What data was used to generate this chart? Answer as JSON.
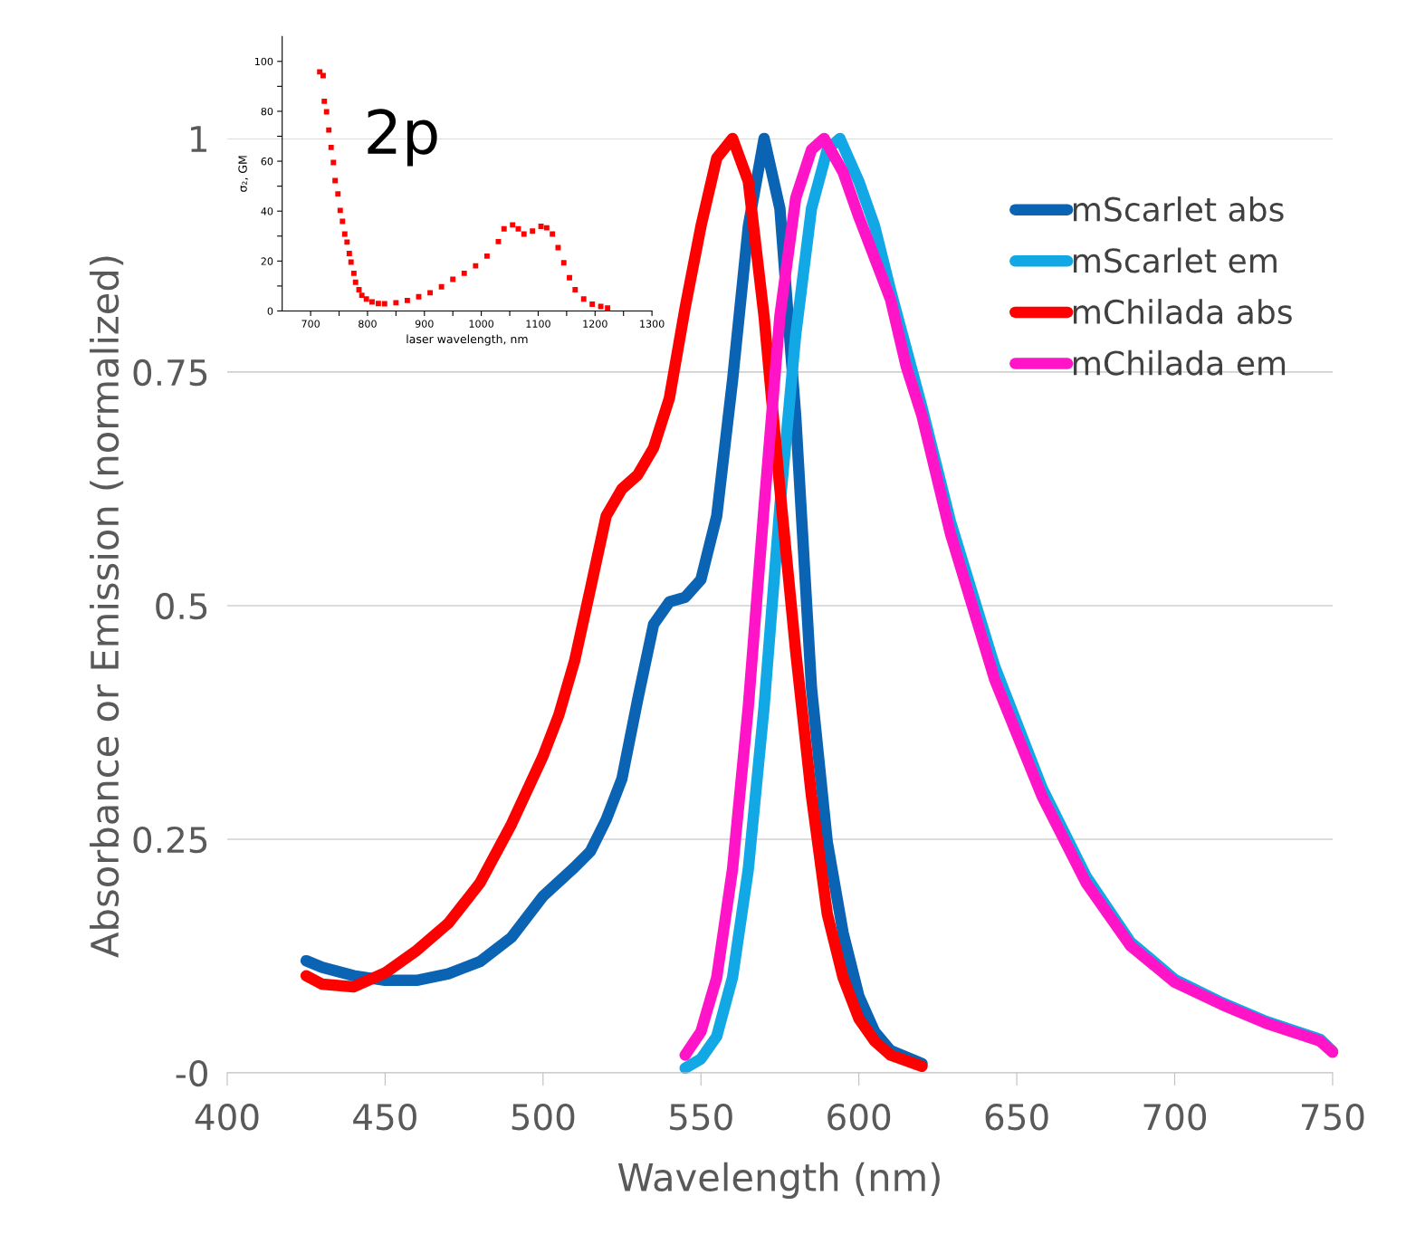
{
  "chart_data": [
    {
      "type": "line",
      "xlabel": "Wavelength (nm)",
      "ylabel": "Absorbance or Emission (normalized)",
      "xlim": [
        400,
        750
      ],
      "xticks": [
        400,
        450,
        500,
        550,
        600,
        650,
        700,
        750
      ],
      "ylim": [
        0,
        1
      ],
      "yticks": [
        {
          "value": 0,
          "label": "-0"
        },
        0.25,
        0.5,
        0.75,
        1
      ],
      "grid": "y",
      "legend": "top right",
      "line_style": "solid",
      "marker": "none",
      "series": [
        {
          "name": "mScarlet abs",
          "color": "#0b63b3",
          "x": [
            425,
            430,
            440,
            450,
            460,
            470,
            480,
            490,
            500,
            510,
            515,
            520,
            525,
            530,
            535,
            540,
            545,
            550,
            555,
            560,
            565,
            570,
            575,
            580,
            585,
            590,
            595,
            600,
            605,
            610,
            620
          ],
          "values": [
            0.12,
            0.113,
            0.104,
            0.099,
            0.099,
            0.106,
            0.119,
            0.145,
            0.189,
            0.22,
            0.237,
            0.271,
            0.315,
            0.4,
            0.48,
            0.504,
            0.509,
            0.528,
            0.596,
            0.741,
            0.906,
            1.0,
            0.925,
            0.703,
            0.412,
            0.247,
            0.15,
            0.082,
            0.044,
            0.024,
            0.01
          ]
        },
        {
          "name": "mScarlet em",
          "color": "#12a8e6",
          "x": [
            545,
            550,
            555,
            560,
            565,
            570,
            575,
            580,
            585,
            590,
            594,
            600,
            605,
            610,
            620,
            629,
            643,
            658,
            672,
            686,
            700,
            715,
            729,
            746,
            750
          ],
          "values": [
            0.005,
            0.015,
            0.039,
            0.102,
            0.218,
            0.392,
            0.606,
            0.79,
            0.925,
            0.988,
            1.0,
            0.954,
            0.906,
            0.838,
            0.712,
            0.59,
            0.435,
            0.305,
            0.21,
            0.14,
            0.1,
            0.075,
            0.055,
            0.036,
            0.023
          ]
        },
        {
          "name": "mChilada abs",
          "color": "#ff0000",
          "x": [
            425,
            430,
            440,
            450,
            460,
            470,
            480,
            490,
            500,
            505,
            510,
            515,
            520,
            525,
            530,
            535,
            540,
            545,
            550,
            555,
            560,
            565,
            570,
            575,
            580,
            585,
            590,
            595,
            600,
            605,
            610,
            620
          ],
          "values": [
            0.104,
            0.095,
            0.092,
            0.107,
            0.131,
            0.16,
            0.203,
            0.266,
            0.339,
            0.383,
            0.441,
            0.518,
            0.596,
            0.625,
            0.64,
            0.669,
            0.722,
            0.819,
            0.906,
            0.979,
            1.0,
            0.954,
            0.809,
            0.625,
            0.451,
            0.296,
            0.17,
            0.102,
            0.058,
            0.034,
            0.019,
            0.007
          ]
        },
        {
          "name": "mChilada em",
          "color": "#ff14c8",
          "x": [
            545,
            550,
            555,
            560,
            565,
            570,
            575,
            580,
            585,
            589,
            595,
            600,
            610,
            615,
            620,
            629,
            643,
            658,
            672,
            686,
            700,
            715,
            729,
            746,
            750
          ],
          "values": [
            0.019,
            0.044,
            0.102,
            0.218,
            0.392,
            0.606,
            0.81,
            0.936,
            0.988,
            1.0,
            0.964,
            0.916,
            0.828,
            0.756,
            0.703,
            0.577,
            0.421,
            0.296,
            0.203,
            0.136,
            0.097,
            0.073,
            0.053,
            0.034,
            0.022
          ]
        }
      ]
    },
    {
      "type": "scatter",
      "xlabel": "laser wavelength, nm",
      "ylabel": "σ₂, GM",
      "xlim": [
        650,
        1300
      ],
      "xticks": [
        700,
        {
          "value": 750,
          "label": null
        },
        800,
        {
          "value": 850,
          "label": null
        },
        900,
        {
          "value": 950,
          "label": null
        },
        1000,
        {
          "value": 1050,
          "label": null
        },
        1100,
        {
          "value": 1150,
          "label": null
        },
        1200,
        {
          "value": 1250,
          "label": null
        },
        1300
      ],
      "ylim": [
        0,
        110
      ],
      "yticks": [
        0,
        {
          "value": 10,
          "label": null
        },
        20,
        {
          "value": 30,
          "label": null
        },
        40,
        {
          "value": 50,
          "label": null
        },
        60,
        {
          "value": 70,
          "label": null
        },
        80,
        {
          "value": 90,
          "label": null
        },
        100
      ],
      "marker": "square",
      "annotations": [
        "2p"
      ],
      "series": [
        {
          "color": "#ff0000",
          "x": [
            716,
            722,
            724,
            728,
            732,
            736,
            740,
            743,
            748,
            752,
            756,
            760,
            764,
            768,
            771,
            776,
            779,
            785,
            790,
            798,
            808,
            819,
            830,
            850,
            870,
            890,
            910,
            930,
            950,
            970,
            990,
            1010,
            1030,
            1040,
            1055,
            1065,
            1075,
            1090,
            1105,
            1115,
            1125,
            1135,
            1145,
            1155,
            1165,
            1180,
            1195,
            1210,
            1222
          ],
          "values": [
            95.8,
            94.3,
            84,
            79.8,
            72.5,
            65.5,
            59.5,
            52.2,
            46.9,
            40.3,
            35.9,
            30.8,
            27.6,
            23,
            19.6,
            15.1,
            11.5,
            8.5,
            6.3,
            4.8,
            3.6,
            3,
            2.9,
            3.3,
            4.2,
            5.7,
            7.3,
            9.7,
            12.7,
            15.1,
            18.1,
            22,
            27.8,
            32.9,
            34.5,
            32.9,
            30.8,
            32,
            33.9,
            33.3,
            30.8,
            25.4,
            19.3,
            13.3,
            8.5,
            4.8,
            2.7,
            1.8,
            1.2
          ]
        }
      ]
    }
  ]
}
